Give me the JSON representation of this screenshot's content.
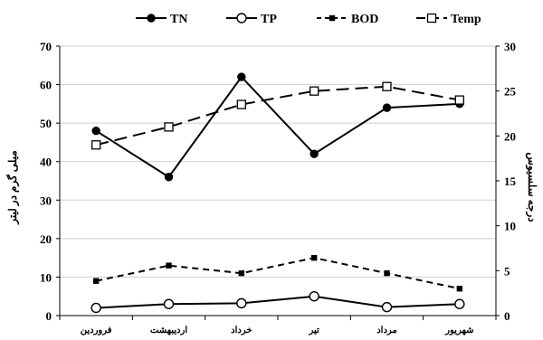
{
  "chart_data": {
    "type": "line",
    "categories": [
      "فروردین",
      "اردیبهشت",
      "خرداد",
      "تیر",
      "مرداد",
      "شهریور"
    ],
    "series": [
      {
        "name": "TN",
        "axis": "left",
        "values": [
          48,
          36,
          62,
          42,
          54,
          55
        ],
        "style": "solid",
        "marker": "filled-circle"
      },
      {
        "name": "TP",
        "axis": "left",
        "values": [
          2,
          3,
          3.2,
          5,
          2.2,
          3
        ],
        "style": "solid",
        "marker": "open-circle"
      },
      {
        "name": "BOD",
        "axis": "left",
        "values": [
          9,
          13,
          11,
          15,
          11,
          7
        ],
        "style": "dashed",
        "marker": "filled-square"
      },
      {
        "name": "Temp",
        "axis": "right",
        "values": [
          19,
          21,
          23.5,
          25,
          25.5,
          24
        ],
        "style": "long-dashed",
        "marker": "open-square"
      }
    ],
    "ylabel_left": "میلی گرم در لیتر",
    "ylabel_right": "درجه سلسیوس",
    "ylim_left": [
      0,
      70
    ],
    "yticks_left": [
      0,
      10,
      20,
      30,
      40,
      50,
      60,
      70
    ],
    "ylim_right": [
      0,
      30
    ],
    "yticks_right": [
      0,
      5,
      10,
      15,
      20,
      25,
      30
    ],
    "grid": "horizontal",
    "legend_position": "top"
  }
}
